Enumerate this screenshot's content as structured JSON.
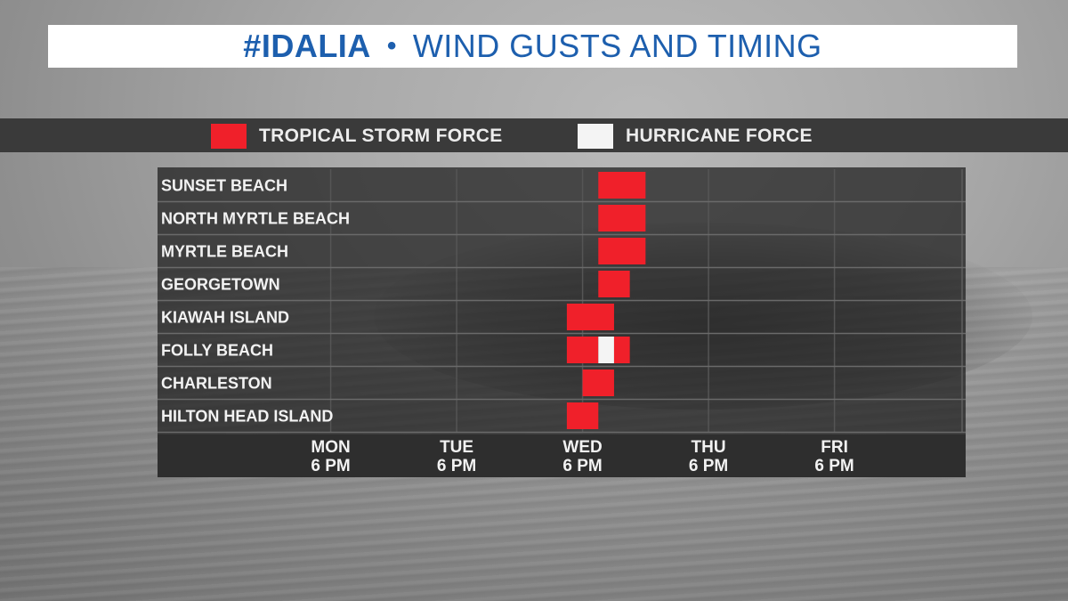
{
  "title": {
    "hashtag": "#IDALIA",
    "separator": "•",
    "text": "WIND GUSTS AND TIMING"
  },
  "legend": [
    {
      "label": "TROPICAL STORM FORCE",
      "color": "#f0202a"
    },
    {
      "label": "HURRICANE FORCE",
      "color": "#f4f4f4"
    }
  ],
  "colors": {
    "tropical_storm": "#f0202a",
    "hurricane": "#f4f4f4",
    "title_text": "#1d5fae"
  },
  "chart_data": {
    "type": "gantt",
    "x_unit": "hours from MON 6 PM",
    "x_ticks": [
      {
        "day": "MON",
        "time": "6 PM",
        "value": 0
      },
      {
        "day": "TUE",
        "time": "6 PM",
        "value": 24
      },
      {
        "day": "WED",
        "time": "6 PM",
        "value": 48
      },
      {
        "day": "THU",
        "time": "6 PM",
        "value": 72
      },
      {
        "day": "FRI",
        "time": "6 PM",
        "value": 96
      }
    ],
    "xlim": [
      -33,
      121
    ],
    "grid": true,
    "rows": [
      {
        "location": "SUNSET BEACH",
        "segments": [
          {
            "start": 51,
            "end": 60,
            "category": "tropical_storm"
          }
        ]
      },
      {
        "location": "NORTH MYRTLE BEACH",
        "segments": [
          {
            "start": 51,
            "end": 60,
            "category": "tropical_storm"
          }
        ]
      },
      {
        "location": "MYRTLE BEACH",
        "segments": [
          {
            "start": 51,
            "end": 60,
            "category": "tropical_storm"
          }
        ]
      },
      {
        "location": "GEORGETOWN",
        "segments": [
          {
            "start": 51,
            "end": 57,
            "category": "tropical_storm"
          }
        ]
      },
      {
        "location": "KIAWAH ISLAND",
        "segments": [
          {
            "start": 45,
            "end": 54,
            "category": "tropical_storm"
          }
        ]
      },
      {
        "location": "FOLLY BEACH",
        "segments": [
          {
            "start": 45,
            "end": 51,
            "category": "tropical_storm"
          },
          {
            "start": 51,
            "end": 54,
            "category": "hurricane"
          },
          {
            "start": 54,
            "end": 57,
            "category": "tropical_storm"
          }
        ]
      },
      {
        "location": "CHARLESTON",
        "segments": [
          {
            "start": 48,
            "end": 54,
            "category": "tropical_storm"
          }
        ]
      },
      {
        "location": "HILTON HEAD ISLAND",
        "segments": [
          {
            "start": 45,
            "end": 51,
            "category": "tropical_storm"
          }
        ]
      }
    ]
  }
}
